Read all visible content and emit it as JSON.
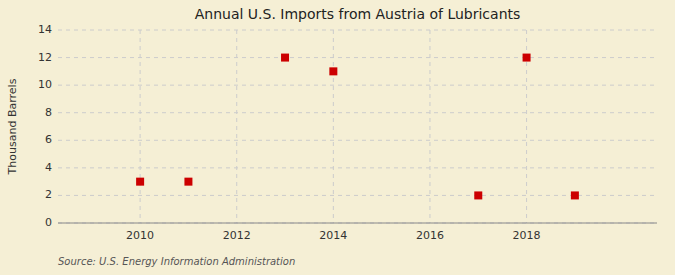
{
  "chart_data": {
    "type": "scatter",
    "title": "Annual U.S. Imports from Austria of Lubricants",
    "ylabel": "Thousand Barrels",
    "source": "Source: U.S. Energy Information Administration",
    "x": [
      2010,
      2011,
      2013,
      2014,
      2017,
      2018,
      2019
    ],
    "values": [
      3,
      3,
      12,
      11,
      2,
      12,
      2
    ],
    "color": "#cc0000",
    "marker": "square",
    "xlim": [
      2008.3,
      2020.7
    ],
    "ylim": [
      0,
      14
    ],
    "xticks": [
      2010,
      2012,
      2014,
      2016,
      2018
    ],
    "yticks": [
      0,
      2,
      4,
      6,
      8,
      10,
      12,
      14
    ],
    "grid": true
  }
}
